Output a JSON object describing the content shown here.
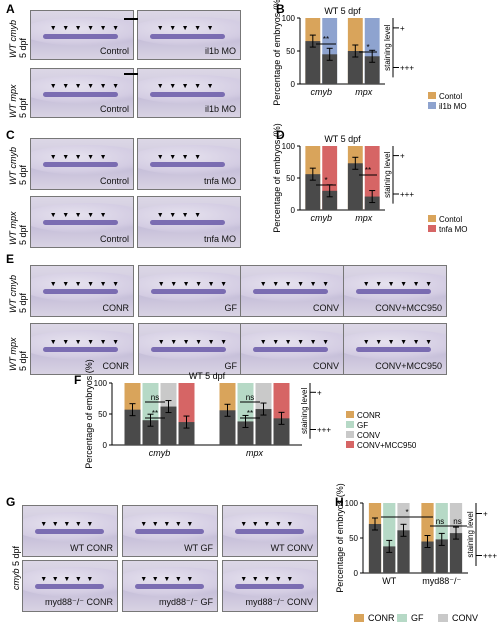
{
  "panels": {
    "A": {
      "letter": "A",
      "row_labels": [
        "WT cmyb\n5 dpf",
        "WT mpx\n5 dpf"
      ],
      "photos": [
        [
          "Control",
          "il1b MO"
        ],
        [
          "Control",
          "il1b MO"
        ]
      ]
    },
    "B": {
      "letter": "B",
      "title": "WT 5 dpf"
    },
    "C": {
      "letter": "C",
      "row_labels": [
        "WT cmyb\n5 dpf",
        "WT mpx\n5 dpf"
      ],
      "photos": [
        [
          "Control",
          "tnfa MO"
        ],
        [
          "Control",
          "tnfa MO"
        ]
      ]
    },
    "D": {
      "letter": "D",
      "title": "WT 5 dpf"
    },
    "E": {
      "letter": "E",
      "row_labels": [
        "WT cmyb\n5 dpf",
        "WT mpx\n5 dpf"
      ],
      "photos": [
        [
          "CONR",
          "GF",
          "CONV",
          "CONV+MCC950"
        ],
        [
          "CONR",
          "GF",
          "CONV",
          "CONV+MCC950"
        ]
      ]
    },
    "F": {
      "letter": "F",
      "title": "WT 5 dpf"
    },
    "G": {
      "letter": "G",
      "row_label": "cmyb 5 dpf",
      "photos": [
        [
          "WT CONR",
          "WT GF",
          "WT CONV"
        ],
        [
          "myd88⁻/⁻ CONR",
          "myd88⁻/⁻ GF",
          "myd88⁻/⁻ CONV"
        ]
      ]
    },
    "H": {
      "letter": "H"
    }
  },
  "axis": {
    "ylabel": "Percentage of embryos (%)",
    "staining": "staining level",
    "plus": "+",
    "pluses": "+++"
  },
  "colors": {
    "orange": "#d9a45b",
    "blue": "#8ea3cf",
    "red": "#d66565",
    "green": "#b6d9c6",
    "gray": "#c9c9c9",
    "dark": "#4a4a4a"
  },
  "chart_data": [
    {
      "type": "bar",
      "panel": "B",
      "title": "WT 5 dpf",
      "categories": [
        "cmyb",
        "mpx"
      ],
      "ylim": [
        0,
        100
      ],
      "yticks": [
        0,
        50,
        100
      ],
      "series": [
        {
          "name": "Contol",
          "values": [
            65,
            50
          ]
        },
        {
          "name": "il1b MO",
          "values": [
            45,
            42
          ]
        }
      ],
      "annotations": [
        "**",
        "*"
      ],
      "legend": [
        "Contol",
        "il1b MO"
      ]
    },
    {
      "type": "bar",
      "panel": "D",
      "title": "WT 5 dpf",
      "categories": [
        "cmyb",
        "mpx"
      ],
      "ylim": [
        0,
        100
      ],
      "yticks": [
        0,
        50,
        100
      ],
      "series": [
        {
          "name": "Contol",
          "values": [
            56,
            73
          ]
        },
        {
          "name": "tnfa MO",
          "values": [
            30,
            21
          ]
        }
      ],
      "annotations": [
        "*",
        "**"
      ],
      "legend": [
        "Contol",
        "tnfa MO"
      ]
    },
    {
      "type": "bar",
      "panel": "F",
      "title": "WT 5 dpf",
      "categories": [
        "cmyb",
        "mpx"
      ],
      "ylim": [
        0,
        100
      ],
      "yticks": [
        0,
        50,
        100
      ],
      "series": [
        {
          "name": "CONR",
          "values": [
            57,
            56
          ]
        },
        {
          "name": "GF",
          "values": [
            40,
            38
          ]
        },
        {
          "name": "CONV",
          "values": [
            62,
            58
          ]
        },
        {
          "name": "CONV+MCC950",
          "values": [
            37,
            43
          ]
        }
      ],
      "annotations": [
        "ns",
        "**",
        "ns",
        "**"
      ],
      "legend": [
        "CONR",
        "GF",
        "CONV",
        "CONV+MCC950"
      ]
    },
    {
      "type": "bar",
      "panel": "H",
      "categories": [
        "WT",
        "myd88⁻/⁻"
      ],
      "ylim": [
        0,
        100
      ],
      "yticks": [
        0,
        50,
        100
      ],
      "series": [
        {
          "name": "CONR",
          "values": [
            70,
            45
          ]
        },
        {
          "name": "GF",
          "values": [
            38,
            48
          ]
        },
        {
          "name": "CONV",
          "values": [
            61,
            57
          ]
        }
      ],
      "annotations": [
        "*",
        "ns",
        "ns"
      ],
      "legend": [
        "CONR",
        "GF",
        "CONV"
      ]
    }
  ]
}
